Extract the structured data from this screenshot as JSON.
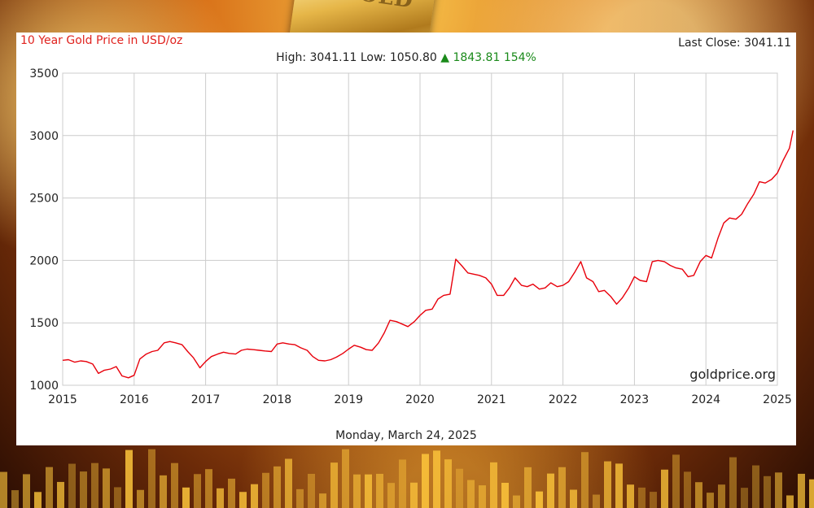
{
  "chart_data": {
    "type": "line",
    "title": "10 Year Gold Price in USD/oz",
    "last_close_label": "Last Close:",
    "last_close": "3041.11",
    "high_label": "High:",
    "high": "3041.11",
    "low_label": "Low:",
    "low": "1050.80",
    "change": "1843.81",
    "change_pct": "154%",
    "source": "goldprice.org",
    "date": "Monday, March 24, 2025",
    "xlabel": "",
    "ylabel": "",
    "xlim": [
      2015,
      2025
    ],
    "ylim": [
      1000,
      3500
    ],
    "x_ticks": [
      "2015",
      "2016",
      "2017",
      "2018",
      "2019",
      "2020",
      "2021",
      "2022",
      "2023",
      "2024",
      "2025"
    ],
    "y_ticks": [
      "1000",
      "1500",
      "2000",
      "2500",
      "3000",
      "3500"
    ],
    "grid": true,
    "colors": {
      "line": "#e8000b",
      "title": "#e0231f",
      "up": "#1a8a1a",
      "grid": "#cccccc"
    },
    "series": [
      {
        "x": [
          2015.0,
          2015.08,
          2015.17,
          2015.25,
          2015.33,
          2015.42,
          2015.5,
          2015.58,
          2015.67,
          2015.75,
          2015.83,
          2015.92,
          2016.0,
          2016.08,
          2016.17,
          2016.25,
          2016.33,
          2016.42,
          2016.5,
          2016.58,
          2016.67,
          2016.75,
          2016.83,
          2016.92,
          2017.0,
          2017.08,
          2017.17,
          2017.25,
          2017.33,
          2017.42,
          2017.5,
          2017.58,
          2017.67,
          2017.75,
          2017.83,
          2017.92,
          2018.0,
          2018.08,
          2018.17,
          2018.25,
          2018.33,
          2018.42,
          2018.5,
          2018.58,
          2018.67,
          2018.75,
          2018.83,
          2018.92,
          2019.0,
          2019.08,
          2019.17,
          2019.25,
          2019.33,
          2019.42,
          2019.5,
          2019.58,
          2019.67,
          2019.75,
          2019.83,
          2019.92,
          2020.0,
          2020.08,
          2020.17,
          2020.25,
          2020.33,
          2020.42,
          2020.5,
          2020.58,
          2020.67,
          2020.75,
          2020.83,
          2020.92,
          2021.0,
          2021.08,
          2021.17,
          2021.25,
          2021.33,
          2021.42,
          2021.5,
          2021.58,
          2021.67,
          2021.75,
          2021.83,
          2021.92,
          2022.0,
          2022.08,
          2022.17,
          2022.25,
          2022.33,
          2022.42,
          2022.5,
          2022.58,
          2022.67,
          2022.75,
          2022.83,
          2022.92,
          2023.0,
          2023.08,
          2023.17,
          2023.25,
          2023.33,
          2023.42,
          2023.5,
          2023.58,
          2023.67,
          2023.75,
          2023.83,
          2023.92,
          2024.0,
          2024.08,
          2024.17,
          2024.25,
          2024.33,
          2024.42,
          2024.5,
          2024.58,
          2024.67,
          2024.75,
          2024.83,
          2024.92,
          2025.0,
          2025.08,
          2025.17,
          2025.22
        ],
        "y": [
          1200,
          1205,
          1185,
          1195,
          1190,
          1170,
          1095,
          1120,
          1130,
          1150,
          1075,
          1060,
          1080,
          1210,
          1250,
          1270,
          1280,
          1340,
          1350,
          1340,
          1325,
          1270,
          1220,
          1140,
          1190,
          1230,
          1250,
          1265,
          1255,
          1250,
          1280,
          1290,
          1285,
          1280,
          1275,
          1270,
          1330,
          1340,
          1330,
          1325,
          1300,
          1280,
          1230,
          1200,
          1195,
          1205,
          1225,
          1255,
          1290,
          1320,
          1305,
          1285,
          1280,
          1340,
          1420,
          1520,
          1510,
          1490,
          1470,
          1510,
          1560,
          1600,
          1610,
          1690,
          1720,
          1730,
          2010,
          1960,
          1900,
          1890,
          1880,
          1860,
          1810,
          1720,
          1720,
          1780,
          1860,
          1800,
          1790,
          1810,
          1770,
          1780,
          1820,
          1790,
          1800,
          1830,
          1910,
          1990,
          1860,
          1830,
          1750,
          1760,
          1710,
          1650,
          1700,
          1780,
          1870,
          1840,
          1830,
          1990,
          2000,
          1990,
          1960,
          1940,
          1930,
          1870,
          1880,
          1990,
          2040,
          2020,
          2180,
          2300,
          2340,
          2330,
          2370,
          2450,
          2530,
          2630,
          2620,
          2650,
          2700,
          2800,
          2900,
          3041
        ]
      }
    ]
  }
}
